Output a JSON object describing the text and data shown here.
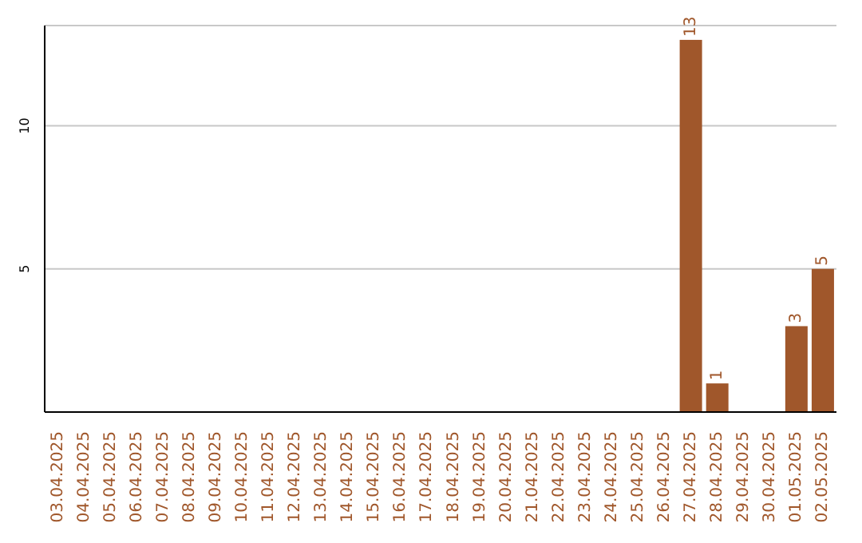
{
  "chart_data": {
    "type": "bar",
    "categories": [
      "03.04.2025",
      "04.04.2025",
      "05.04.2025",
      "06.04.2025",
      "07.04.2025",
      "08.04.2025",
      "09.04.2025",
      "10.04.2025",
      "11.04.2025",
      "12.04.2025",
      "13.04.2025",
      "14.04.2025",
      "15.04.2025",
      "16.04.2025",
      "17.04.2025",
      "18.04.2025",
      "19.04.2025",
      "20.04.2025",
      "21.04.2025",
      "22.04.2025",
      "23.04.2025",
      "24.04.2025",
      "25.04.2025",
      "26.04.2025",
      "27.04.2025",
      "28.04.2025",
      "29.04.2025",
      "30.04.2025",
      "01.05.2025",
      "02.05.2025"
    ],
    "values": [
      0,
      0,
      0,
      0,
      0,
      0,
      0,
      0,
      0,
      0,
      0,
      0,
      0,
      0,
      0,
      0,
      0,
      0,
      0,
      0,
      0,
      0,
      0,
      0,
      13,
      1,
      0,
      0,
      3,
      5
    ],
    "value_labels": [
      null,
      null,
      null,
      null,
      null,
      null,
      null,
      null,
      null,
      null,
      null,
      null,
      null,
      null,
      null,
      null,
      null,
      null,
      null,
      null,
      null,
      null,
      null,
      null,
      "13",
      "1",
      null,
      null,
      "3",
      "5"
    ],
    "color": "#a0572b",
    "ylim": [
      0,
      13.5
    ],
    "yticks": [
      5,
      10
    ],
    "grid": "y"
  }
}
